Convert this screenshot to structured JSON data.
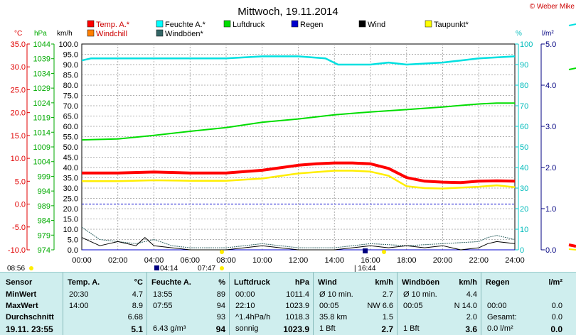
{
  "title": "Mittwoch, 19.11.2014",
  "copyright": "© Weber Mike",
  "legend": [
    {
      "label": "Temp. A.*",
      "color": "#ff0000"
    },
    {
      "label": "Feuchte A.*",
      "color": "#00ffff"
    },
    {
      "label": "Luftdruck",
      "color": "#00dd00"
    },
    {
      "label": "Regen",
      "color": "#0000cc"
    },
    {
      "label": "Wind",
      "color": "#000000"
    },
    {
      "label": "Taupunkt*",
      "color": "#ffff00"
    },
    {
      "label": "Windchill",
      "color": "#ff8000"
    },
    {
      "label": "Windböen*",
      "color": "#336666"
    }
  ],
  "axes": {
    "temp_unit": "°C",
    "pressure_unit": "hPa",
    "wind_unit": "km/h",
    "hum_unit": "%",
    "rain_unit": "l/m²",
    "temp_ticks": [
      "35.0",
      "30.0",
      "25.0",
      "20.0",
      "15.0",
      "10.0",
      "5.0",
      "0.0",
      "-5.0",
      "-10.0"
    ],
    "pressure_ticks": [
      "1044",
      "1039",
      "1034",
      "1029",
      "1024",
      "1019",
      "1014",
      "1009",
      "1004",
      "999",
      "994",
      "989",
      "984",
      "979",
      "974"
    ],
    "wind_ticks": [
      "100.0",
      "95.0",
      "90.0",
      "85.0",
      "80.0",
      "75.0",
      "70.0",
      "65.0",
      "60.0",
      "55.0",
      "50.0",
      "45.0",
      "40.0",
      "35.0",
      "30.0",
      "25.0",
      "20.0",
      "15.0",
      "10.0",
      "5.0",
      "0.0"
    ],
    "hum_ticks": [
      "100",
      "90",
      "80",
      "70",
      "60",
      "50",
      "40",
      "30",
      "20",
      "10",
      "0"
    ],
    "rain_ticks": [
      "5.0",
      "4.0",
      "3.0",
      "2.0",
      "1.0",
      "0.0"
    ],
    "time_ticks": [
      "00:00",
      "02:00",
      "04:00",
      "06:00",
      "08:00",
      "10:00",
      "12:00",
      "14:00",
      "16:00",
      "18:00",
      "20:00",
      "22:00",
      "24:00"
    ]
  },
  "events": {
    "sunrise": "08:56",
    "moonrise": "04:14",
    "dawn": "07:47",
    "moon_phase": "16:44"
  },
  "chart_data": {
    "type": "line",
    "x_unit": "hours",
    "series": [
      {
        "name": "Temp. A.*",
        "axis": "temp",
        "values": [
          [
            0,
            6.8
          ],
          [
            2,
            6.8
          ],
          [
            4,
            7.0
          ],
          [
            6,
            6.8
          ],
          [
            8,
            6.8
          ],
          [
            10,
            7.4
          ],
          [
            12,
            8.5
          ],
          [
            13,
            8.8
          ],
          [
            14,
            9.0
          ],
          [
            15,
            9.0
          ],
          [
            16,
            8.8
          ],
          [
            17,
            7.8
          ],
          [
            18,
            5.8
          ],
          [
            19,
            5.0
          ],
          [
            20,
            4.8
          ],
          [
            21,
            4.7
          ],
          [
            22,
            5.0
          ],
          [
            23,
            5.1
          ],
          [
            24,
            5.0
          ]
        ]
      },
      {
        "name": "Taupunkt*",
        "axis": "temp",
        "values": [
          [
            0,
            5.0
          ],
          [
            2,
            5.0
          ],
          [
            4,
            5.2
          ],
          [
            6,
            5.1
          ],
          [
            8,
            5.1
          ],
          [
            10,
            5.6
          ],
          [
            12,
            6.7
          ],
          [
            14,
            7.3
          ],
          [
            15,
            7.3
          ],
          [
            16,
            7.1
          ],
          [
            17,
            6.2
          ],
          [
            18,
            3.9
          ],
          [
            19,
            3.5
          ],
          [
            20,
            3.4
          ],
          [
            22,
            3.8
          ],
          [
            23,
            4.1
          ],
          [
            24,
            3.7
          ]
        ]
      },
      {
        "name": "Feuchte A.*",
        "axis": "hum",
        "values": [
          [
            0,
            92
          ],
          [
            0.5,
            93
          ],
          [
            2,
            93
          ],
          [
            6,
            93
          ],
          [
            8,
            93
          ],
          [
            10,
            94
          ],
          [
            12,
            94
          ],
          [
            13.5,
            93
          ],
          [
            14.2,
            90
          ],
          [
            15,
            90
          ],
          [
            16,
            90
          ],
          [
            17,
            91
          ],
          [
            18,
            90
          ],
          [
            20,
            91
          ],
          [
            21,
            92
          ],
          [
            22,
            93
          ],
          [
            24,
            94
          ]
        ]
      },
      {
        "name": "Luftdruck",
        "axis": "pressure",
        "values": [
          [
            0,
            1011.4
          ],
          [
            2,
            1011.7
          ],
          [
            4,
            1012.9
          ],
          [
            6,
            1014.3
          ],
          [
            8,
            1015.6
          ],
          [
            10,
            1017.4
          ],
          [
            12,
            1018.5
          ],
          [
            14,
            1019.9
          ],
          [
            16,
            1020.9
          ],
          [
            18,
            1021.7
          ],
          [
            20,
            1022.6
          ],
          [
            22,
            1023.6
          ],
          [
            23,
            1023.9
          ],
          [
            24,
            1023.9
          ]
        ]
      },
      {
        "name": "Wind",
        "axis": "wind",
        "values": [
          [
            0,
            6
          ],
          [
            0.5,
            4
          ],
          [
            1,
            2
          ],
          [
            1.5,
            3
          ],
          [
            2,
            4
          ],
          [
            3,
            2
          ],
          [
            3.5,
            6
          ],
          [
            4,
            2
          ],
          [
            5,
            1
          ],
          [
            6,
            0
          ],
          [
            8,
            0
          ],
          [
            9,
            1
          ],
          [
            10,
            2
          ],
          [
            11,
            1
          ],
          [
            12,
            0
          ],
          [
            14,
            0
          ],
          [
            15,
            1
          ],
          [
            16,
            2
          ],
          [
            17,
            1
          ],
          [
            18,
            2
          ],
          [
            19,
            1
          ],
          [
            20,
            2
          ],
          [
            21,
            0
          ],
          [
            22,
            1
          ],
          [
            22.5,
            3
          ],
          [
            23,
            4
          ],
          [
            24,
            3
          ]
        ]
      },
      {
        "name": "Windböen*",
        "axis": "wind",
        "values": [
          [
            0,
            11
          ],
          [
            0.5,
            8
          ],
          [
            1,
            5
          ],
          [
            2,
            4
          ],
          [
            3,
            3
          ],
          [
            4,
            5
          ],
          [
            5,
            2
          ],
          [
            6,
            1
          ],
          [
            8,
            1
          ],
          [
            10,
            3
          ],
          [
            12,
            1
          ],
          [
            14,
            1
          ],
          [
            16,
            3
          ],
          [
            18,
            2
          ],
          [
            20,
            3
          ],
          [
            22,
            4
          ],
          [
            22.5,
            6
          ],
          [
            23,
            7
          ],
          [
            24,
            5
          ]
        ]
      },
      {
        "name": "Regen",
        "axis": "rain",
        "values": [
          [
            0,
            0.0
          ],
          [
            24,
            0.0
          ]
        ]
      }
    ],
    "ranges": {
      "temp": [
        -10,
        35
      ],
      "pressure": [
        974,
        1044
      ],
      "wind": [
        0,
        100
      ],
      "hum": [
        0,
        100
      ],
      "rain": [
        0,
        5
      ],
      "x": [
        0,
        24
      ]
    },
    "grid": true
  },
  "table": {
    "sensor": {
      "head": "Sensor",
      "rows": [
        "MinWert",
        "MaxWert",
        "Durchschnitt",
        "19.11. 23:55"
      ]
    },
    "temp": {
      "head": "Temp. A.",
      "unit": "°C",
      "rows": [
        [
          "20:30",
          "4.7"
        ],
        [
          "14:00",
          "8.9"
        ],
        [
          "",
          "6.68"
        ],
        [
          "",
          "5.1"
        ]
      ]
    },
    "hum": {
      "head": "Feuchte A.",
      "unit": "%",
      "rows": [
        [
          "13:55",
          "89"
        ],
        [
          "07:55",
          "94"
        ],
        [
          "",
          "93"
        ],
        [
          "6.43 g/m³",
          "94"
        ]
      ]
    },
    "press": {
      "head": "Luftdruck",
      "unit": "hPa",
      "rows": [
        [
          "00:00",
          "1011.4"
        ],
        [
          "22:10",
          "1023.9"
        ],
        [
          "^1.4hPa/h",
          "1018.3"
        ],
        [
          "sonnig",
          "1023.9"
        ]
      ]
    },
    "wind": {
      "head": "Wind",
      "unit": "km/h",
      "rows": [
        [
          "Ø 10 min.",
          "2.7"
        ],
        [
          "00:05",
          "NW 6.6"
        ],
        [
          "35.8 km",
          "1.5"
        ],
        [
          "1 Bft",
          "2.7"
        ]
      ]
    },
    "gust": {
      "head": "Windböen",
      "unit": "km/h",
      "rows": [
        [
          "Ø 10 min.",
          "4.4"
        ],
        [
          "00:05",
          "N 14.0"
        ],
        [
          "",
          "2.0"
        ],
        [
          "1 Bft",
          "3.6"
        ]
      ]
    },
    "rain": {
      "head": "Regen",
      "unit": "l/m²",
      "rows": [
        [
          "",
          ""
        ],
        [
          "00:00",
          "0.0"
        ],
        [
          "Gesamt:",
          "0.0"
        ],
        [
          "0.0 l/m²",
          "0.0"
        ]
      ]
    }
  }
}
